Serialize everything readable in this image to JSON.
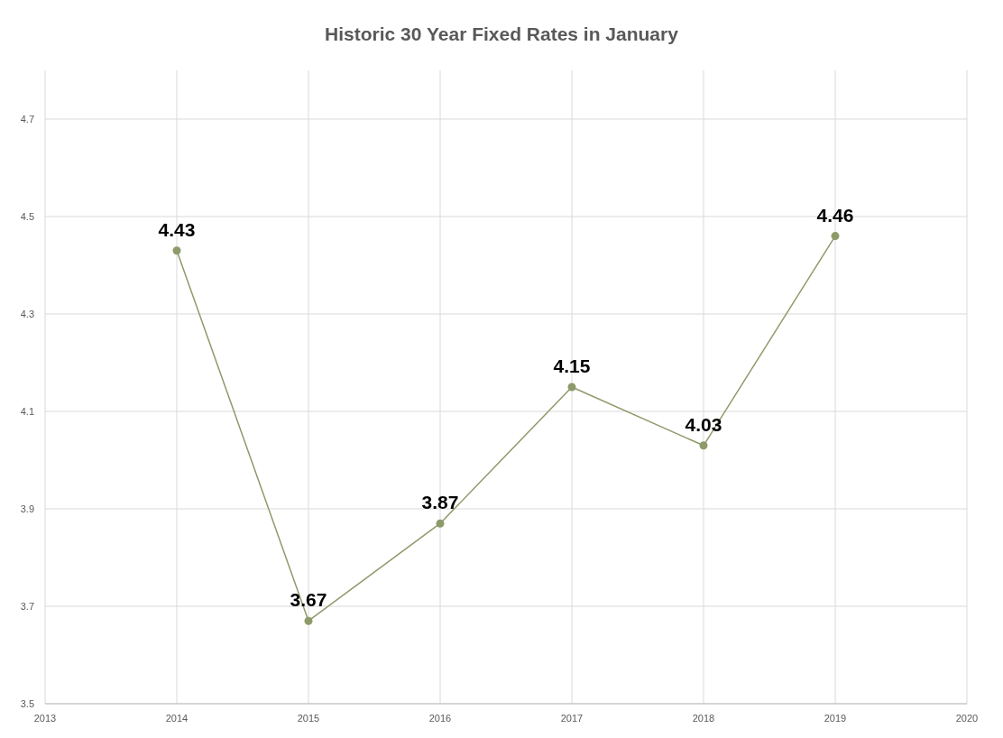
{
  "chart_data": {
    "type": "line",
    "title": "Historic 30 Year Fixed Rates in January",
    "x": [
      2014,
      2015,
      2016,
      2017,
      2018,
      2019
    ],
    "series": [
      {
        "color": "#8f9a6a",
        "values": [
          4.43,
          3.67,
          3.87,
          4.15,
          4.03,
          4.46
        ]
      }
    ],
    "xlim": [
      2013,
      2020
    ],
    "xticks": [
      2013,
      2014,
      2015,
      2016,
      2017,
      2018,
      2019,
      2020
    ],
    "ylim": [
      3.5,
      4.8
    ],
    "yticks": [
      3.5,
      3.7,
      3.9,
      4.1,
      4.3,
      4.5,
      4.7
    ],
    "grid": true,
    "marker": "circle",
    "line_style": "solid",
    "data_labels": true
  }
}
